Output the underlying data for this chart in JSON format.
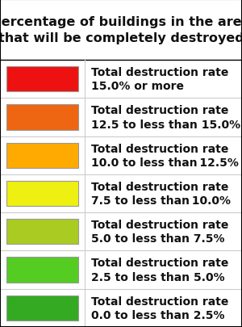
{
  "title": "Percentage of buildings in the area\nthat will be completely destroyed",
  "title_fontsize": 11.5,
  "background_color": "#ffffff",
  "border_color": "#000000",
  "rows": [
    {
      "color": "#ee1111",
      "label_line1": "Total destruction rate",
      "label_line2": "15.0% or more"
    },
    {
      "color": "#ee6611",
      "label_line1": "Total destruction rate",
      "label_line2": "12.5 to less than 15.0%"
    },
    {
      "color": "#ffaa00",
      "label_line1": "Total destruction rate",
      "label_line2": "10.0 to less than 12.5%"
    },
    {
      "color": "#eef011",
      "label_line1": "Total destruction rate",
      "label_line2": "7.5 to less than 10.0%"
    },
    {
      "color": "#aacc22",
      "label_line1": "Total destruction rate",
      "label_line2": "5.0 to less than 7.5%"
    },
    {
      "color": "#55cc22",
      "label_line1": "Total destruction rate",
      "label_line2": "2.5 to less than 5.0%"
    },
    {
      "color": "#33aa22",
      "label_line1": "Total destruction rate",
      "label_line2": "0.0 to less than 2.5%"
    }
  ],
  "text_fontsize": 10,
  "row_sep_color": "#cccccc",
  "col_div_color": "#cccccc"
}
